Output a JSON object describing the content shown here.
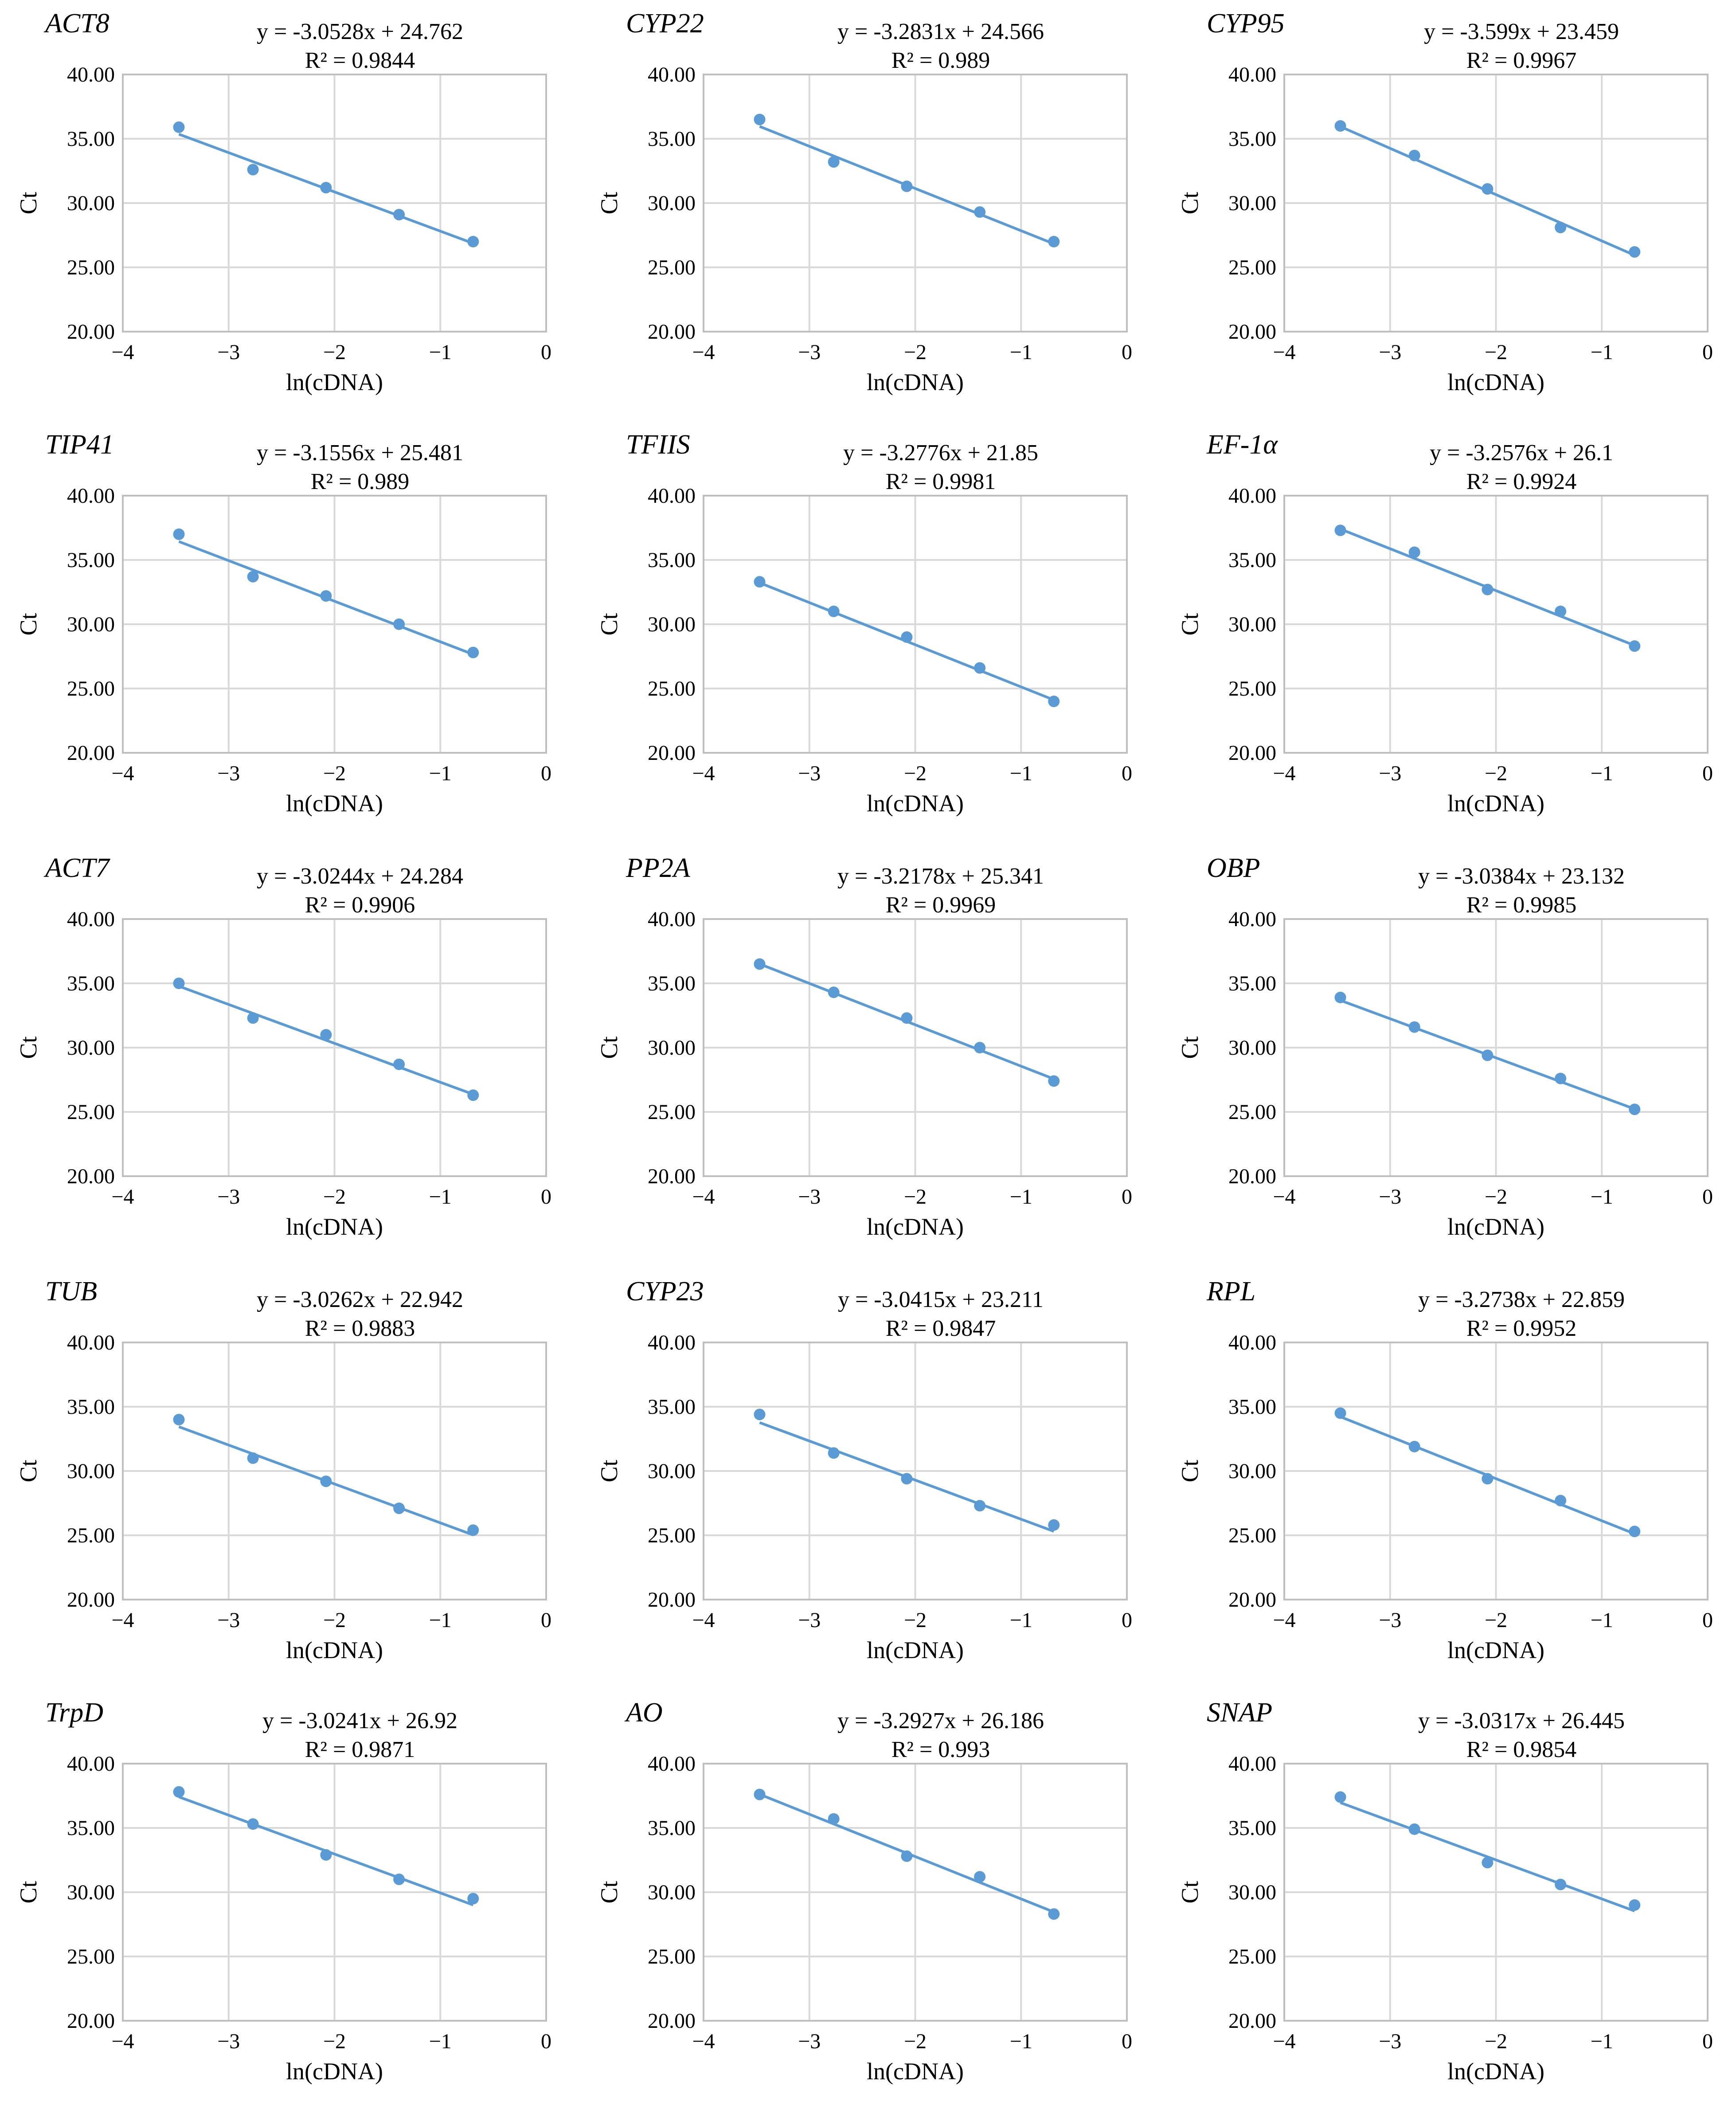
{
  "chart_data": [
    {
      "type": "scatter",
      "title": "ACT8",
      "equation": "y = -3.0528x + 24.762",
      "r2": "R² = 0.9844",
      "slope": -3.0528,
      "intercept": 24.762,
      "x": [
        -3.47,
        -2.77,
        -2.08,
        -1.39,
        -0.69
      ],
      "y": [
        35.9,
        32.6,
        31.2,
        29.1,
        27.0
      ],
      "xlabel": "ln(cDNA)",
      "ylabel": "Ct",
      "xlim": [
        -4,
        0
      ],
      "ylim": [
        20,
        40
      ],
      "xticks": [
        "−4",
        "−3",
        "−2",
        "−1",
        "0"
      ],
      "yticks": [
        "20.00",
        "25.00",
        "30.00",
        "35.00",
        "40.00"
      ]
    },
    {
      "type": "scatter",
      "title": "CYP22",
      "equation": "y = -3.2831x + 24.566",
      "r2": "R² = 0.989",
      "slope": -3.2831,
      "intercept": 24.566,
      "x": [
        -3.47,
        -2.77,
        -2.08,
        -1.39,
        -0.69
      ],
      "y": [
        36.5,
        33.2,
        31.3,
        29.3,
        27.0
      ],
      "xlabel": "ln(cDNA)",
      "ylabel": "Ct",
      "xlim": [
        -4,
        0
      ],
      "ylim": [
        20,
        40
      ],
      "xticks": [
        "−4",
        "−3",
        "−2",
        "−1",
        "0"
      ],
      "yticks": [
        "20.00",
        "25.00",
        "30.00",
        "35.00",
        "40.00"
      ]
    },
    {
      "type": "scatter",
      "title": "CYP95",
      "equation": "y = -3.599x + 23.459",
      "r2": "R² = 0.9967",
      "slope": -3.599,
      "intercept": 23.459,
      "x": [
        -3.47,
        -2.77,
        -2.08,
        -1.39,
        -0.69
      ],
      "y": [
        36.0,
        33.7,
        31.1,
        28.1,
        26.2
      ],
      "xlabel": "ln(cDNA)",
      "ylabel": "Ct",
      "xlim": [
        -4,
        0
      ],
      "ylim": [
        20,
        40
      ],
      "xticks": [
        "−4",
        "−3",
        "−2",
        "−1",
        "0"
      ],
      "yticks": [
        "20.00",
        "25.00",
        "30.00",
        "35.00",
        "40.00"
      ]
    },
    {
      "type": "scatter",
      "title": "TIP41",
      "equation": "y = -3.1556x + 25.481",
      "r2": "R² = 0.989",
      "slope": -3.1556,
      "intercept": 25.481,
      "x": [
        -3.47,
        -2.77,
        -2.08,
        -1.39,
        -0.69
      ],
      "y": [
        37.0,
        33.7,
        32.2,
        30.0,
        27.8
      ],
      "xlabel": "ln(cDNA)",
      "ylabel": "Ct",
      "xlim": [
        -4,
        0
      ],
      "ylim": [
        20,
        40
      ],
      "xticks": [
        "−4",
        "−3",
        "−2",
        "−1",
        "0"
      ],
      "yticks": [
        "20.00",
        "25.00",
        "30.00",
        "35.00",
        "40.00"
      ]
    },
    {
      "type": "scatter",
      "title": "TFIIS",
      "equation": "y = -3.2776x + 21.85",
      "r2": "R² = 0.9981",
      "slope": -3.2776,
      "intercept": 21.85,
      "x": [
        -3.47,
        -2.77,
        -2.08,
        -1.39,
        -0.69
      ],
      "y": [
        33.3,
        31.0,
        29.0,
        26.6,
        24.0
      ],
      "xlabel": "ln(cDNA)",
      "ylabel": "Ct",
      "xlim": [
        -4,
        0
      ],
      "ylim": [
        20,
        40
      ],
      "xticks": [
        "−4",
        "−3",
        "−2",
        "−1",
        "0"
      ],
      "yticks": [
        "20.00",
        "25.00",
        "30.00",
        "35.00",
        "40.00"
      ]
    },
    {
      "type": "scatter",
      "title": "EF-1α",
      "equation": "y = -3.2576x + 26.1",
      "r2": "R² = 0.9924",
      "slope": -3.2576,
      "intercept": 26.1,
      "x": [
        -3.47,
        -2.77,
        -2.08,
        -1.39,
        -0.69
      ],
      "y": [
        37.3,
        35.6,
        32.7,
        31.0,
        28.3
      ],
      "xlabel": "ln(cDNA)",
      "ylabel": "Ct",
      "xlim": [
        -4,
        0
      ],
      "ylim": [
        20,
        40
      ],
      "xticks": [
        "−4",
        "−3",
        "−2",
        "−1",
        "0"
      ],
      "yticks": [
        "20.00",
        "25.00",
        "30.00",
        "35.00",
        "40.00"
      ]
    },
    {
      "type": "scatter",
      "title": "ACT7",
      "equation": "y = -3.0244x + 24.284",
      "r2": "R² = 0.9906",
      "slope": -3.0244,
      "intercept": 24.284,
      "x": [
        -3.47,
        -2.77,
        -2.08,
        -1.39,
        -0.69
      ],
      "y": [
        35.0,
        32.3,
        31.0,
        28.7,
        26.3
      ],
      "xlabel": "ln(cDNA)",
      "ylabel": "Ct",
      "xlim": [
        -4,
        0
      ],
      "ylim": [
        20,
        40
      ],
      "xticks": [
        "−4",
        "−3",
        "−2",
        "−1",
        "0"
      ],
      "yticks": [
        "20.00",
        "25.00",
        "30.00",
        "35.00",
        "40.00"
      ]
    },
    {
      "type": "scatter",
      "title": "PP2A",
      "equation": "y = -3.2178x + 25.341",
      "r2": "R² = 0.9969",
      "slope": -3.2178,
      "intercept": 25.341,
      "x": [
        -3.47,
        -2.77,
        -2.08,
        -1.39,
        -0.69
      ],
      "y": [
        36.5,
        34.3,
        32.3,
        30.0,
        27.4
      ],
      "xlabel": "ln(cDNA)",
      "ylabel": "Ct",
      "xlim": [
        -4,
        0
      ],
      "ylim": [
        20,
        40
      ],
      "xticks": [
        "−4",
        "−3",
        "−2",
        "−1",
        "0"
      ],
      "yticks": [
        "20.00",
        "25.00",
        "30.00",
        "35.00",
        "40.00"
      ]
    },
    {
      "type": "scatter",
      "title": "OBP",
      "equation": "y = -3.0384x + 23.132",
      "r2": "R² = 0.9985",
      "slope": -3.0384,
      "intercept": 23.132,
      "x": [
        -3.47,
        -2.77,
        -2.08,
        -1.39,
        -0.69
      ],
      "y": [
        33.9,
        31.6,
        29.4,
        27.6,
        25.2
      ],
      "xlabel": "ln(cDNA)",
      "ylabel": "Ct",
      "xlim": [
        -4,
        0
      ],
      "ylim": [
        20,
        40
      ],
      "xticks": [
        "−4",
        "−3",
        "−2",
        "−1",
        "0"
      ],
      "yticks": [
        "20.00",
        "25.00",
        "30.00",
        "35.00",
        "40.00"
      ]
    },
    {
      "type": "scatter",
      "title": "TUB",
      "equation": "y = -3.0262x + 22.942",
      "r2": "R² = 0.9883",
      "slope": -3.0262,
      "intercept": 22.942,
      "x": [
        -3.47,
        -2.77,
        -2.08,
        -1.39,
        -0.69
      ],
      "y": [
        34.0,
        31.0,
        29.2,
        27.1,
        25.4
      ],
      "xlabel": "ln(cDNA)",
      "ylabel": "Ct",
      "xlim": [
        -4,
        0
      ],
      "ylim": [
        20,
        40
      ],
      "xticks": [
        "−4",
        "−3",
        "−2",
        "−1",
        "0"
      ],
      "yticks": [
        "20.00",
        "25.00",
        "30.00",
        "35.00",
        "40.00"
      ]
    },
    {
      "type": "scatter",
      "title": "CYP23",
      "equation": "y = -3.0415x + 23.211",
      "r2": "R² = 0.9847",
      "slope": -3.0415,
      "intercept": 23.211,
      "x": [
        -3.47,
        -2.77,
        -2.08,
        -1.39,
        -0.69
      ],
      "y": [
        34.4,
        31.4,
        29.4,
        27.3,
        25.8
      ],
      "xlabel": "ln(cDNA)",
      "ylabel": "Ct",
      "xlim": [
        -4,
        0
      ],
      "ylim": [
        20,
        40
      ],
      "xticks": [
        "−4",
        "−3",
        "−2",
        "−1",
        "0"
      ],
      "yticks": [
        "20.00",
        "25.00",
        "30.00",
        "35.00",
        "40.00"
      ]
    },
    {
      "type": "scatter",
      "title": "RPL",
      "equation": "y = -3.2738x + 22.859",
      "r2": "R² = 0.9952",
      "slope": -3.2738,
      "intercept": 22.859,
      "x": [
        -3.47,
        -2.77,
        -2.08,
        -1.39,
        -0.69
      ],
      "y": [
        34.5,
        31.9,
        29.4,
        27.7,
        25.3
      ],
      "xlabel": "ln(cDNA)",
      "ylabel": "Ct",
      "xlim": [
        -4,
        0
      ],
      "ylim": [
        20,
        40
      ],
      "xticks": [
        "−4",
        "−3",
        "−2",
        "−1",
        "0"
      ],
      "yticks": [
        "20.00",
        "25.00",
        "30.00",
        "35.00",
        "40.00"
      ]
    },
    {
      "type": "scatter",
      "title": "TrpD",
      "equation": "y = -3.0241x + 26.92",
      "r2": "R² = 0.9871",
      "slope": -3.0241,
      "intercept": 26.92,
      "x": [
        -3.47,
        -2.77,
        -2.08,
        -1.39,
        -0.69
      ],
      "y": [
        37.8,
        35.3,
        32.9,
        31.0,
        29.5
      ],
      "xlabel": "ln(cDNA)",
      "ylabel": "Ct",
      "xlim": [
        -4,
        0
      ],
      "ylim": [
        20,
        40
      ],
      "xticks": [
        "−4",
        "−3",
        "−2",
        "−1",
        "0"
      ],
      "yticks": [
        "20.00",
        "25.00",
        "30.00",
        "35.00",
        "40.00"
      ]
    },
    {
      "type": "scatter",
      "title": "AO",
      "equation": "y = -3.2927x + 26.186",
      "r2": "R² = 0.993",
      "slope": -3.2927,
      "intercept": 26.186,
      "x": [
        -3.47,
        -2.77,
        -2.08,
        -1.39,
        -0.69
      ],
      "y": [
        37.6,
        35.7,
        32.8,
        31.2,
        28.3
      ],
      "xlabel": "ln(cDNA)",
      "ylabel": "Ct",
      "xlim": [
        -4,
        0
      ],
      "ylim": [
        20,
        40
      ],
      "xticks": [
        "−4",
        "−3",
        "−2",
        "−1",
        "0"
      ],
      "yticks": [
        "20.00",
        "25.00",
        "30.00",
        "35.00",
        "40.00"
      ]
    },
    {
      "type": "scatter",
      "title": "SNAP",
      "equation": "y = -3.0317x + 26.445",
      "r2": "R² = 0.9854",
      "slope": -3.0317,
      "intercept": 26.445,
      "x": [
        -3.47,
        -2.77,
        -2.08,
        -1.39,
        -0.69
      ],
      "y": [
        37.4,
        34.9,
        32.3,
        30.6,
        29.0
      ],
      "xlabel": "ln(cDNA)",
      "ylabel": "Ct",
      "xlim": [
        -4,
        0
      ],
      "ylim": [
        20,
        40
      ],
      "xticks": [
        "−4",
        "−3",
        "−2",
        "−1",
        "0"
      ],
      "yticks": [
        "20.00",
        "25.00",
        "30.00",
        "35.00",
        "40.00"
      ]
    }
  ]
}
